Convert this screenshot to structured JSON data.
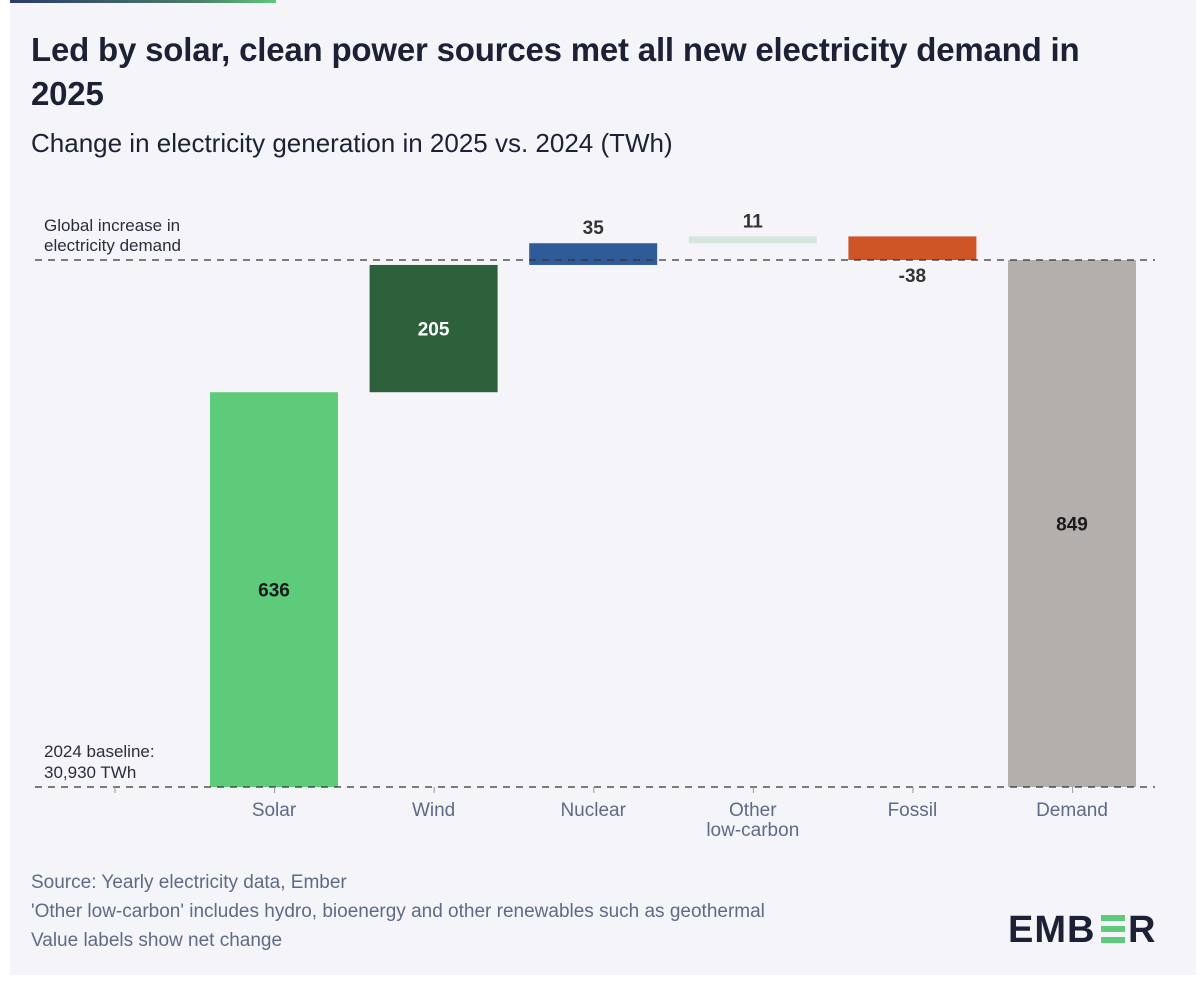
{
  "title": "Led by solar, clean power sources met all new electricity demand in 2025",
  "subtitle": "Change in electricity generation in 2025 vs. 2024 (TWh)",
  "chart_data": {
    "type": "bar",
    "subtype": "waterfall",
    "categories": [
      "Solar",
      "Wind",
      "Nuclear",
      "Other low-carbon",
      "Fossil",
      "Demand"
    ],
    "category_lines": [
      [
        "Solar"
      ],
      [
        "Wind"
      ],
      [
        "Nuclear"
      ],
      [
        "Other",
        "low-carbon"
      ],
      [
        "Fossil"
      ],
      [
        "Demand"
      ]
    ],
    "values": [
      636,
      205,
      35,
      11,
      -38,
      849
    ],
    "value_labels": [
      "636",
      "205",
      "35",
      "11",
      "-38",
      "849"
    ],
    "cumulative_end": [
      636,
      841,
      876,
      887,
      849,
      849
    ],
    "colors": [
      "#5ecb7a",
      "#2c613b",
      "#2f5c99",
      "#d5e6dd",
      "#cf5527",
      "#b3afad"
    ],
    "label_colors": [
      "#1a1a1a",
      "#ffffff",
      "#333333",
      "#333333",
      "#333333",
      "#1a1a1a"
    ],
    "baseline_label": [
      "2024 baseline:",
      "30,930 TWh"
    ],
    "demand_label": [
      "Global increase in",
      "electricity demand"
    ],
    "ylim": [
      0,
      900
    ],
    "grid": false,
    "legend": "none"
  },
  "footer": {
    "source": "Source: Yearly electricity data, Ember",
    "note1": "'Other low-carbon' includes hydro, bioenergy and other renewables such as geothermal",
    "note2": "Value labels show net change"
  },
  "brand": {
    "logo_text": "EMBER",
    "logo_accent": "#5ecb7a"
  }
}
